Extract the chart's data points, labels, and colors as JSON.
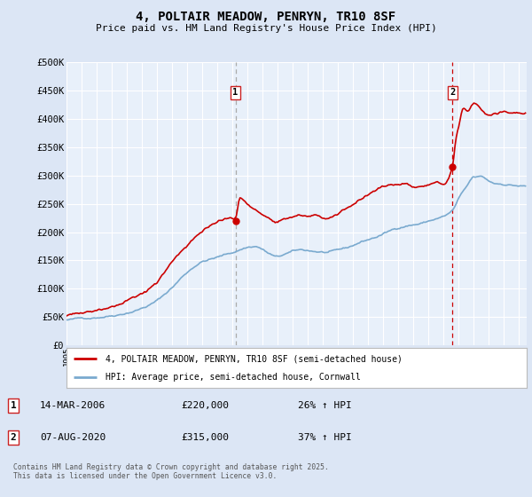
{
  "title": "4, POLTAIR MEADOW, PENRYN, TR10 8SF",
  "subtitle": "Price paid vs. HM Land Registry's House Price Index (HPI)",
  "ylabel_ticks": [
    "£0",
    "£50K",
    "£100K",
    "£150K",
    "£200K",
    "£250K",
    "£300K",
    "£350K",
    "£400K",
    "£450K",
    "£500K"
  ],
  "ytick_values": [
    0,
    50000,
    100000,
    150000,
    200000,
    250000,
    300000,
    350000,
    400000,
    450000,
    500000
  ],
  "ylim": [
    0,
    500000
  ],
  "xlim_start": 1995.0,
  "xlim_end": 2025.5,
  "bg_color": "#dce6f5",
  "plot_bg_color": "#e8f0fa",
  "grid_color": "#ffffff",
  "red_line_color": "#cc0000",
  "blue_line_color": "#7aaacf",
  "sale1_x": 2006.2,
  "sale1_y": 220000,
  "sale1_label": "1",
  "sale2_x": 2020.58,
  "sale2_y": 315000,
  "sale2_label": "2",
  "legend_line1": "4, POLTAIR MEADOW, PENRYN, TR10 8SF (semi-detached house)",
  "legend_line2": "HPI: Average price, semi-detached house, Cornwall",
  "annotation1_date": "14-MAR-2006",
  "annotation1_price": "£220,000",
  "annotation1_hpi": "26% ↑ HPI",
  "annotation2_date": "07-AUG-2020",
  "annotation2_price": "£315,000",
  "annotation2_hpi": "37% ↑ HPI",
  "footer": "Contains HM Land Registry data © Crown copyright and database right 2025.\nThis data is licensed under the Open Government Licence v3.0.",
  "sale1_vline_color": "#aaaaaa",
  "sale2_vline_color": "#dd4444"
}
